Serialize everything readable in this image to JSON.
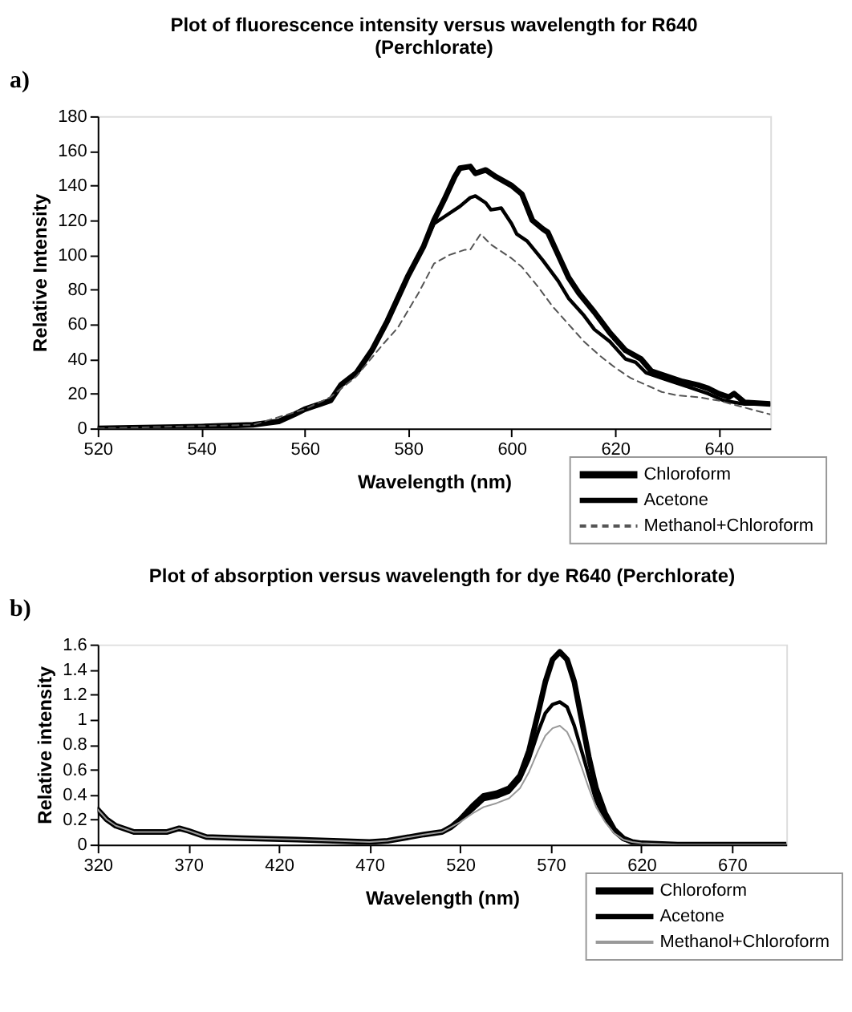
{
  "chart_data": [
    {
      "type": "line",
      "title": "Plot of fluorescence intensity versus wavelength for R640\n(Perchlorate)",
      "xlabel": "Wavelength (nm)",
      "ylabel": "Relative Intensity",
      "annotations": [
        "a)"
      ],
      "xlim": [
        520,
        650
      ],
      "xticks": [
        520,
        540,
        560,
        580,
        600,
        620,
        640
      ],
      "ylim": [
        0,
        180
      ],
      "yticks": [
        0,
        20,
        40,
        60,
        80,
        100,
        120,
        140,
        160,
        180
      ],
      "grid": false,
      "legend": "bottom right",
      "marker": "none",
      "series": [
        {
          "name": "Chloroform",
          "color": "#000000",
          "line_style": "solid",
          "x": [
            520,
            540,
            550,
            555,
            558,
            560,
            563,
            565,
            567,
            570,
            573,
            576,
            580,
            583,
            585,
            587,
            589,
            590,
            592,
            593,
            595,
            597,
            600,
            602,
            604,
            606,
            607,
            609,
            611,
            613,
            616,
            619,
            622,
            625,
            627,
            630,
            633,
            636,
            638,
            640,
            642,
            643,
            645,
            650
          ],
          "values": [
            0,
            1,
            2,
            4,
            8,
            11,
            14,
            16,
            25,
            32,
            45,
            62,
            88,
            105,
            120,
            132,
            145,
            150,
            151,
            147,
            149,
            145,
            140,
            135,
            120,
            115,
            113,
            100,
            87,
            78,
            67,
            55,
            45,
            40,
            33,
            30,
            27,
            25,
            23,
            20,
            18,
            20,
            15,
            14
          ]
        },
        {
          "name": "Acetone",
          "color": "#000000",
          "line_style": "solid",
          "x": [
            520,
            540,
            550,
            555,
            558,
            560,
            563,
            565,
            567,
            570,
            573,
            576,
            580,
            583,
            585,
            587,
            590,
            592,
            593,
            595,
            596,
            598,
            600,
            601,
            603,
            606,
            609,
            611,
            614,
            616,
            619,
            622,
            624,
            626,
            630,
            634,
            638,
            641,
            645,
            650
          ],
          "values": [
            0,
            1,
            2,
            4,
            8,
            11,
            14,
            16,
            25,
            32,
            45,
            62,
            88,
            105,
            118,
            122,
            128,
            133,
            134,
            130,
            126,
            127,
            118,
            112,
            108,
            97,
            85,
            75,
            65,
            57,
            50,
            40,
            38,
            32,
            28,
            24,
            20,
            16,
            14,
            14
          ]
        },
        {
          "name": "Methanol+Chloroform",
          "color": "#555555",
          "line_style": "dashed",
          "x": [
            520,
            550,
            560,
            565,
            570,
            575,
            578,
            582,
            585,
            588,
            591,
            592,
            594,
            596,
            600,
            602,
            605,
            608,
            611,
            614,
            617,
            620,
            623,
            626,
            629,
            632,
            636,
            640,
            645,
            650
          ],
          "values": [
            0,
            2,
            11,
            18,
            30,
            48,
            58,
            78,
            95,
            100,
            103,
            103,
            112,
            106,
            98,
            93,
            82,
            70,
            60,
            50,
            42,
            35,
            29,
            25,
            21,
            19,
            18,
            16,
            12,
            8
          ]
        }
      ]
    },
    {
      "type": "line",
      "title": "Plot of absorption versus wavelength for dye R640 (Perchlorate)",
      "xlabel": "Wavelength (nm)",
      "ylabel": "Relative intensity",
      "annotations": [
        "b)"
      ],
      "xlim": [
        320,
        700
      ],
      "xticks": [
        320,
        370,
        420,
        470,
        520,
        570,
        620,
        670
      ],
      "ylim": [
        0,
        1.6
      ],
      "yticks": [
        0,
        0.2,
        0.4,
        0.6,
        0.8,
        1,
        1.2,
        1.4,
        1.6
      ],
      "grid": false,
      "legend": "bottom right",
      "marker": "none",
      "series": [
        {
          "name": "Chloroform",
          "color": "#000000",
          "line_style": "solid",
          "x": [
            320,
            325,
            330,
            340,
            350,
            358,
            365,
            370,
            380,
            400,
            430,
            450,
            470,
            480,
            500,
            510,
            515,
            520,
            527,
            533,
            540,
            547,
            553,
            558,
            563,
            567,
            571,
            575,
            579,
            583,
            587,
            591,
            595,
            600,
            605,
            610,
            615,
            620,
            640,
            700
          ],
          "values": [
            0.28,
            0.2,
            0.15,
            0.1,
            0.1,
            0.1,
            0.13,
            0.11,
            0.06,
            0.05,
            0.04,
            0.03,
            0.02,
            0.03,
            0.08,
            0.1,
            0.14,
            0.2,
            0.31,
            0.39,
            0.41,
            0.45,
            0.55,
            0.75,
            1.05,
            1.3,
            1.48,
            1.54,
            1.48,
            1.3,
            1.0,
            0.7,
            0.45,
            0.25,
            0.12,
            0.05,
            0.02,
            0.01,
            0,
            0
          ]
        },
        {
          "name": "Acetone",
          "color": "#000000",
          "line_style": "solid",
          "x": [
            320,
            325,
            330,
            340,
            350,
            358,
            365,
            370,
            380,
            400,
            430,
            450,
            470,
            480,
            500,
            510,
            515,
            520,
            527,
            533,
            540,
            547,
            553,
            558,
            563,
            567,
            571,
            575,
            579,
            583,
            587,
            591,
            595,
            600,
            605,
            610,
            615,
            620,
            640,
            700
          ],
          "values": [
            0.28,
            0.2,
            0.15,
            0.1,
            0.1,
            0.1,
            0.13,
            0.11,
            0.06,
            0.05,
            0.04,
            0.03,
            0.02,
            0.03,
            0.08,
            0.1,
            0.14,
            0.19,
            0.28,
            0.36,
            0.38,
            0.42,
            0.52,
            0.68,
            0.9,
            1.05,
            1.12,
            1.14,
            1.1,
            0.95,
            0.75,
            0.55,
            0.35,
            0.2,
            0.1,
            0.04,
            0.02,
            0.01,
            0,
            0
          ]
        },
        {
          "name": "Methanol+Chloroform",
          "color": "#999999",
          "line_style": "solid",
          "x": [
            320,
            325,
            330,
            340,
            350,
            358,
            365,
            370,
            380,
            400,
            430,
            450,
            470,
            480,
            500,
            510,
            515,
            520,
            527,
            533,
            540,
            547,
            553,
            558,
            563,
            567,
            571,
            575,
            579,
            583,
            587,
            591,
            595,
            600,
            605,
            610,
            615,
            620,
            640,
            700
          ],
          "values": [
            0.28,
            0.2,
            0.15,
            0.1,
            0.1,
            0.1,
            0.13,
            0.11,
            0.06,
            0.05,
            0.04,
            0.03,
            0.02,
            0.03,
            0.08,
            0.1,
            0.14,
            0.18,
            0.25,
            0.3,
            0.33,
            0.37,
            0.45,
            0.58,
            0.75,
            0.87,
            0.93,
            0.95,
            0.9,
            0.78,
            0.62,
            0.45,
            0.3,
            0.18,
            0.09,
            0.04,
            0.02,
            0.01,
            0,
            0
          ]
        }
      ]
    }
  ]
}
